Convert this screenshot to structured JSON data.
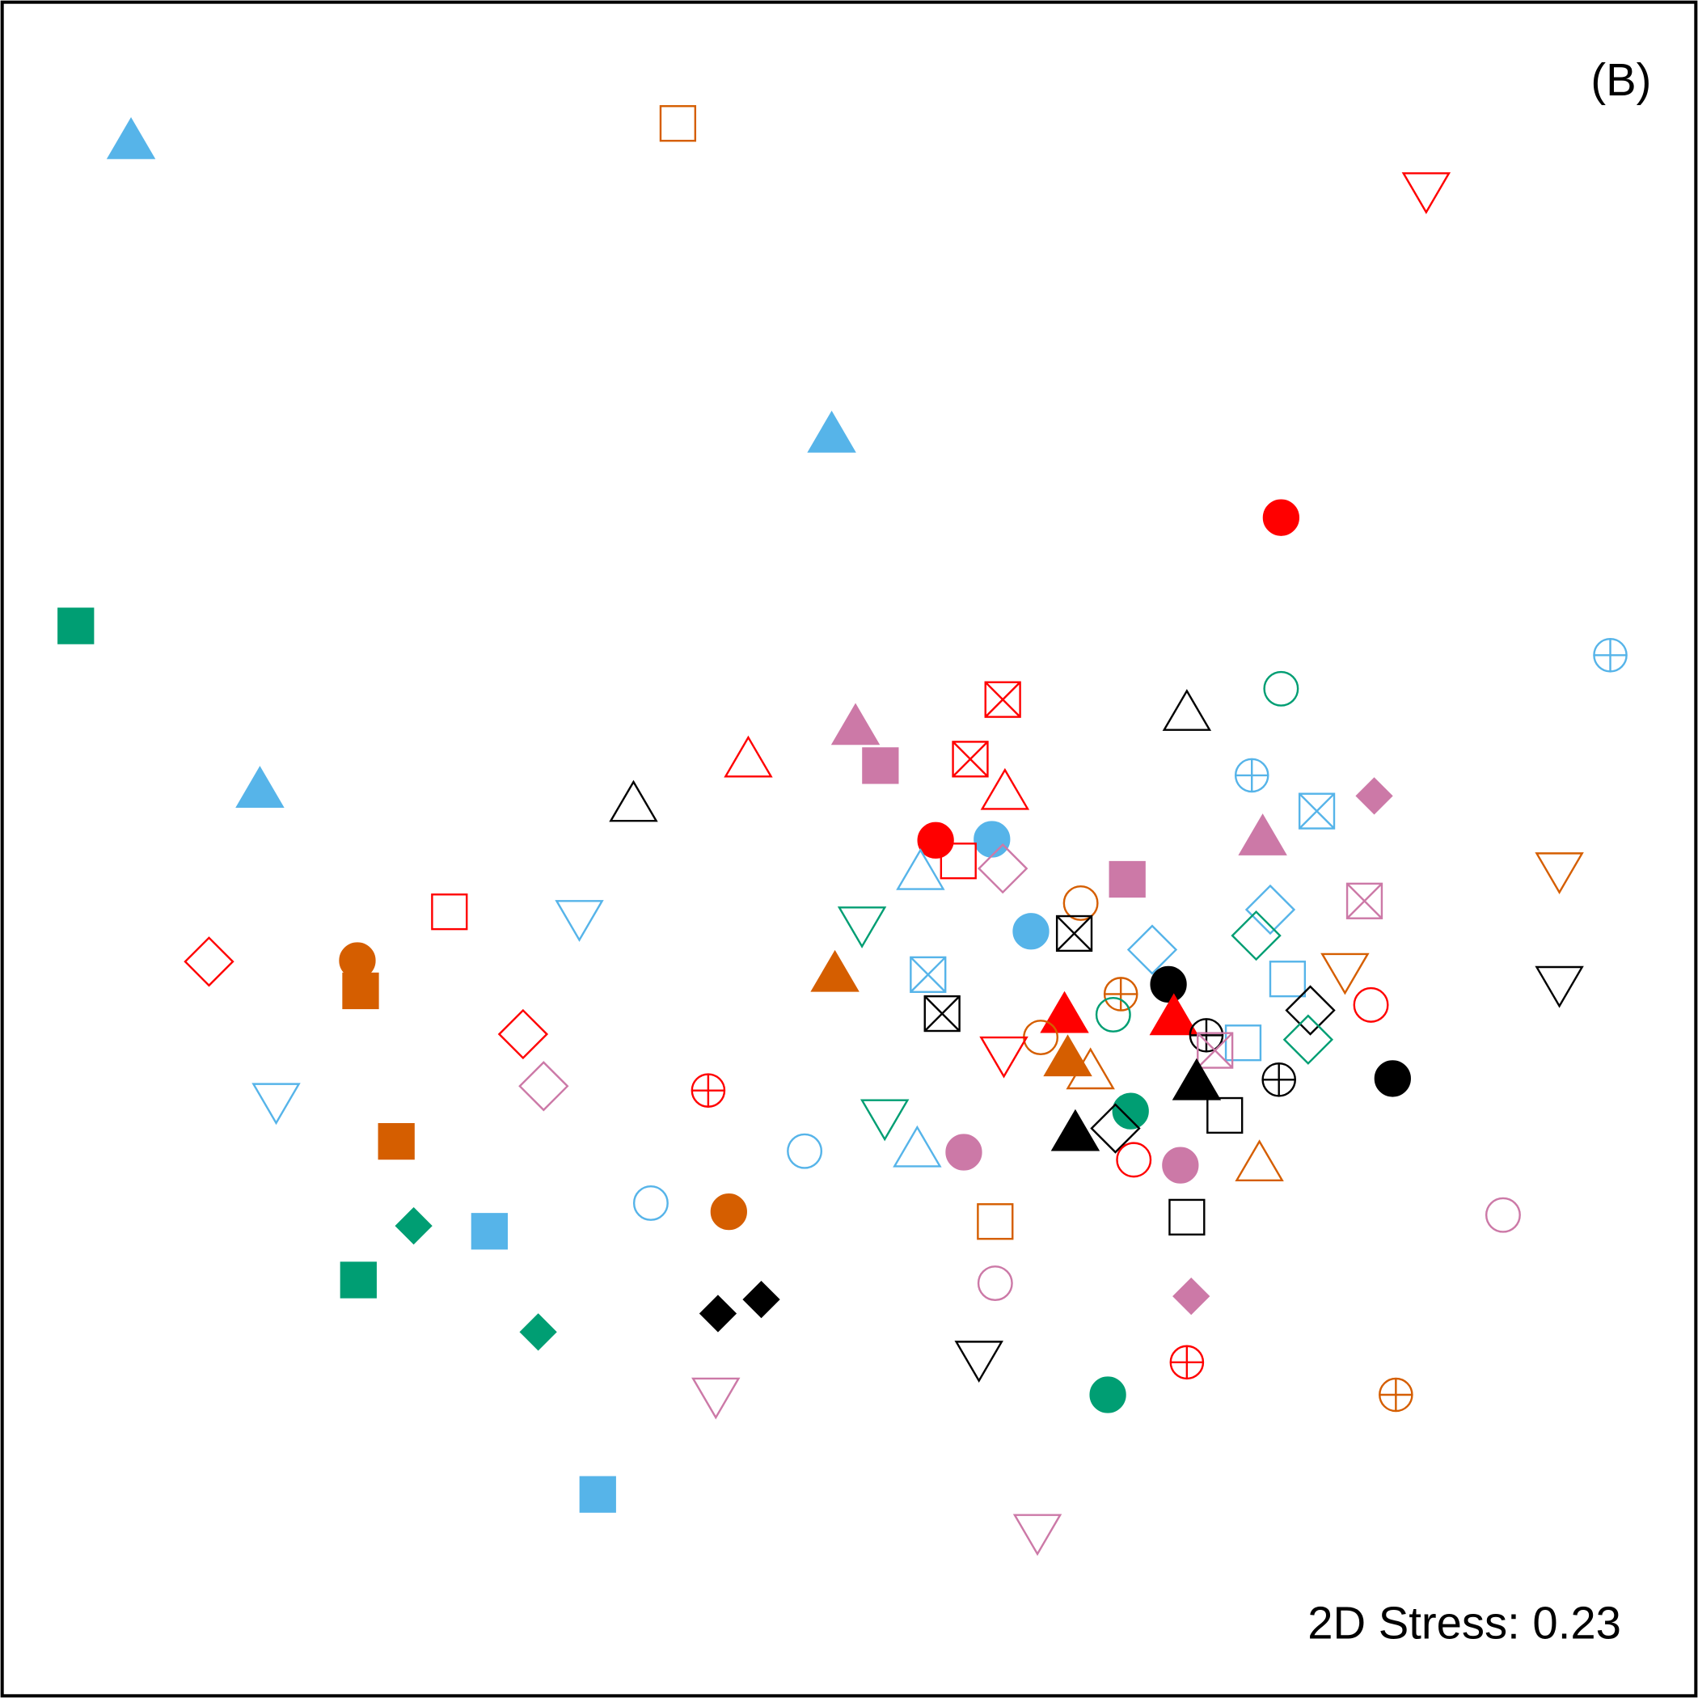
{
  "chart_data": {
    "type": "scatter",
    "panel_label": "(B)",
    "stress_label": "2D Stress: 0.23",
    "xlim": [
      0,
      1568
    ],
    "ylim": [
      0,
      1568
    ],
    "y_inverted": true,
    "axes_visible": false,
    "grid": false,
    "colors": {
      "blue": "#56B4E9",
      "red": "#FF0000",
      "orange": "#D55E00",
      "green": "#009E73",
      "pink": "#CC79A7",
      "black": "#000000"
    },
    "shape_legend": {
      "triangle-up": "triangle pointing up",
      "triangle-down": "triangle pointing down",
      "square": "square",
      "square-x": "square with diagonal cross",
      "circle": "circle",
      "circle-plus": "circle with plus",
      "diamond": "diamond"
    },
    "points": [
      {
        "x": 121,
        "y": 129,
        "shape": "triangle-up",
        "filled": true,
        "color": "blue"
      },
      {
        "x": 626,
        "y": 114,
        "shape": "square",
        "filled": false,
        "color": "orange"
      },
      {
        "x": 1317,
        "y": 177,
        "shape": "triangle-down",
        "filled": false,
        "color": "red"
      },
      {
        "x": 768,
        "y": 400,
        "shape": "triangle-up",
        "filled": true,
        "color": "blue"
      },
      {
        "x": 1183,
        "y": 478,
        "shape": "circle",
        "filled": true,
        "color": "red"
      },
      {
        "x": 70,
        "y": 578,
        "shape": "square",
        "filled": true,
        "color": "green"
      },
      {
        "x": 1487,
        "y": 605,
        "shape": "circle-plus",
        "filled": false,
        "color": "blue"
      },
      {
        "x": 1183,
        "y": 636,
        "shape": "circle",
        "filled": false,
        "color": "green"
      },
      {
        "x": 926,
        "y": 646,
        "shape": "square-x",
        "filled": false,
        "color": "red"
      },
      {
        "x": 1096,
        "y": 657,
        "shape": "triangle-up",
        "filled": false,
        "color": "black"
      },
      {
        "x": 790,
        "y": 670,
        "shape": "triangle-up",
        "filled": true,
        "color": "pink"
      },
      {
        "x": 691,
        "y": 700,
        "shape": "triangle-up",
        "filled": false,
        "color": "red"
      },
      {
        "x": 896,
        "y": 701,
        "shape": "square-x",
        "filled": false,
        "color": "red"
      },
      {
        "x": 813,
        "y": 707,
        "shape": "square",
        "filled": true,
        "color": "pink"
      },
      {
        "x": 1156,
        "y": 716,
        "shape": "circle-plus",
        "filled": false,
        "color": "blue"
      },
      {
        "x": 240,
        "y": 728,
        "shape": "triangle-up",
        "filled": true,
        "color": "blue"
      },
      {
        "x": 928,
        "y": 730,
        "shape": "triangle-up",
        "filled": false,
        "color": "red"
      },
      {
        "x": 1269,
        "y": 735,
        "shape": "diamond",
        "filled": true,
        "color": "pink"
      },
      {
        "x": 585,
        "y": 741,
        "shape": "triangle-up",
        "filled": false,
        "color": "black"
      },
      {
        "x": 1216,
        "y": 749,
        "shape": "square-x",
        "filled": false,
        "color": "blue"
      },
      {
        "x": 1166,
        "y": 772,
        "shape": "triangle-up",
        "filled": true,
        "color": "pink"
      },
      {
        "x": 864,
        "y": 776,
        "shape": "circle",
        "filled": true,
        "color": "red"
      },
      {
        "x": 916,
        "y": 775,
        "shape": "circle",
        "filled": true,
        "color": "blue"
      },
      {
        "x": 885,
        "y": 795,
        "shape": "square",
        "filled": false,
        "color": "red"
      },
      {
        "x": 926,
        "y": 802,
        "shape": "diamond",
        "filled": false,
        "color": "pink"
      },
      {
        "x": 850,
        "y": 804,
        "shape": "triangle-up",
        "filled": false,
        "color": "blue"
      },
      {
        "x": 1440,
        "y": 805,
        "shape": "triangle-down",
        "filled": false,
        "color": "orange"
      },
      {
        "x": 1041,
        "y": 812,
        "shape": "square",
        "filled": true,
        "color": "pink"
      },
      {
        "x": 1260,
        "y": 832,
        "shape": "square-x",
        "filled": false,
        "color": "pink"
      },
      {
        "x": 998,
        "y": 834,
        "shape": "circle",
        "filled": false,
        "color": "orange"
      },
      {
        "x": 415,
        "y": 842,
        "shape": "square",
        "filled": false,
        "color": "red"
      },
      {
        "x": 1173,
        "y": 840,
        "shape": "diamond",
        "filled": false,
        "color": "blue"
      },
      {
        "x": 535,
        "y": 849,
        "shape": "triangle-down",
        "filled": false,
        "color": "blue"
      },
      {
        "x": 796,
        "y": 855,
        "shape": "triangle-down",
        "filled": false,
        "color": "green"
      },
      {
        "x": 952,
        "y": 860,
        "shape": "circle",
        "filled": true,
        "color": "blue"
      },
      {
        "x": 992,
        "y": 862,
        "shape": "square-x",
        "filled": false,
        "color": "black"
      },
      {
        "x": 1160,
        "y": 864,
        "shape": "diamond",
        "filled": false,
        "color": "green"
      },
      {
        "x": 1064,
        "y": 877,
        "shape": "diamond",
        "filled": false,
        "color": "blue"
      },
      {
        "x": 193,
        "y": 888,
        "shape": "diamond",
        "filled": false,
        "color": "red"
      },
      {
        "x": 330,
        "y": 887,
        "shape": "circle",
        "filled": true,
        "color": "orange"
      },
      {
        "x": 771,
        "y": 898,
        "shape": "triangle-up",
        "filled": true,
        "color": "orange"
      },
      {
        "x": 857,
        "y": 900,
        "shape": "square-x",
        "filled": false,
        "color": "blue"
      },
      {
        "x": 1242,
        "y": 898,
        "shape": "triangle-down",
        "filled": false,
        "color": "orange"
      },
      {
        "x": 1189,
        "y": 904,
        "shape": "square",
        "filled": false,
        "color": "blue"
      },
      {
        "x": 1440,
        "y": 910,
        "shape": "triangle-down",
        "filled": false,
        "color": "black"
      },
      {
        "x": 333,
        "y": 915,
        "shape": "square",
        "filled": true,
        "color": "orange"
      },
      {
        "x": 1079,
        "y": 909,
        "shape": "circle",
        "filled": true,
        "color": "black"
      },
      {
        "x": 1035,
        "y": 918,
        "shape": "circle-plus",
        "filled": false,
        "color": "orange"
      },
      {
        "x": 1266,
        "y": 928,
        "shape": "circle",
        "filled": false,
        "color": "red"
      },
      {
        "x": 1210,
        "y": 933,
        "shape": "diamond",
        "filled": false,
        "color": "black"
      },
      {
        "x": 870,
        "y": 936,
        "shape": "square-x",
        "filled": false,
        "color": "black"
      },
      {
        "x": 983,
        "y": 936,
        "shape": "triangle-up",
        "filled": true,
        "color": "red"
      },
      {
        "x": 1028,
        "y": 937,
        "shape": "circle",
        "filled": false,
        "color": "green"
      },
      {
        "x": 1084,
        "y": 938,
        "shape": "triangle-up",
        "filled": true,
        "color": "red"
      },
      {
        "x": 483,
        "y": 955,
        "shape": "diamond",
        "filled": false,
        "color": "red"
      },
      {
        "x": 961,
        "y": 958,
        "shape": "circle",
        "filled": false,
        "color": "orange"
      },
      {
        "x": 1114,
        "y": 956,
        "shape": "circle-plus",
        "filled": false,
        "color": "black"
      },
      {
        "x": 1148,
        "y": 963,
        "shape": "square",
        "filled": false,
        "color": "blue"
      },
      {
        "x": 1208,
        "y": 960,
        "shape": "diamond",
        "filled": false,
        "color": "green"
      },
      {
        "x": 927,
        "y": 975,
        "shape": "triangle-down",
        "filled": false,
        "color": "red"
      },
      {
        "x": 986,
        "y": 976,
        "shape": "triangle-up",
        "filled": true,
        "color": "orange"
      },
      {
        "x": 1122,
        "y": 970,
        "shape": "square-x",
        "filled": false,
        "color": "pink"
      },
      {
        "x": 1007,
        "y": 988,
        "shape": "triangle-up",
        "filled": false,
        "color": "orange"
      },
      {
        "x": 1181,
        "y": 997,
        "shape": "circle-plus",
        "filled": false,
        "color": "black"
      },
      {
        "x": 1286,
        "y": 996,
        "shape": "circle",
        "filled": true,
        "color": "black"
      },
      {
        "x": 1105,
        "y": 998,
        "shape": "triangle-up",
        "filled": true,
        "color": "black"
      },
      {
        "x": 502,
        "y": 1003,
        "shape": "diamond",
        "filled": false,
        "color": "pink"
      },
      {
        "x": 654,
        "y": 1007,
        "shape": "circle-plus",
        "filled": false,
        "color": "red"
      },
      {
        "x": 255,
        "y": 1018,
        "shape": "triangle-down",
        "filled": false,
        "color": "blue"
      },
      {
        "x": 1044,
        "y": 1026,
        "shape": "circle",
        "filled": true,
        "color": "green"
      },
      {
        "x": 1131,
        "y": 1030,
        "shape": "square",
        "filled": false,
        "color": "black"
      },
      {
        "x": 817,
        "y": 1033,
        "shape": "triangle-down",
        "filled": false,
        "color": "green"
      },
      {
        "x": 1030,
        "y": 1042,
        "shape": "diamond",
        "filled": false,
        "color": "black"
      },
      {
        "x": 993,
        "y": 1045,
        "shape": "triangle-up",
        "filled": true,
        "color": "black"
      },
      {
        "x": 366,
        "y": 1054,
        "shape": "square",
        "filled": true,
        "color": "orange"
      },
      {
        "x": 847,
        "y": 1060,
        "shape": "triangle-up",
        "filled": false,
        "color": "blue"
      },
      {
        "x": 743,
        "y": 1063,
        "shape": "circle",
        "filled": false,
        "color": "blue"
      },
      {
        "x": 890,
        "y": 1064,
        "shape": "circle",
        "filled": true,
        "color": "pink"
      },
      {
        "x": 1047,
        "y": 1071,
        "shape": "circle",
        "filled": false,
        "color": "red"
      },
      {
        "x": 1163,
        "y": 1073,
        "shape": "triangle-up",
        "filled": false,
        "color": "orange"
      },
      {
        "x": 1090,
        "y": 1076,
        "shape": "circle",
        "filled": true,
        "color": "pink"
      },
      {
        "x": 601,
        "y": 1111,
        "shape": "circle",
        "filled": false,
        "color": "blue"
      },
      {
        "x": 673,
        "y": 1119,
        "shape": "circle",
        "filled": true,
        "color": "orange"
      },
      {
        "x": 1388,
        "y": 1122,
        "shape": "circle",
        "filled": false,
        "color": "pink"
      },
      {
        "x": 1096,
        "y": 1124,
        "shape": "square",
        "filled": false,
        "color": "black"
      },
      {
        "x": 919,
        "y": 1128,
        "shape": "square",
        "filled": false,
        "color": "orange"
      },
      {
        "x": 382,
        "y": 1132,
        "shape": "diamond",
        "filled": true,
        "color": "green"
      },
      {
        "x": 452,
        "y": 1137,
        "shape": "square",
        "filled": true,
        "color": "blue"
      },
      {
        "x": 331,
        "y": 1182,
        "shape": "square",
        "filled": true,
        "color": "green"
      },
      {
        "x": 919,
        "y": 1185,
        "shape": "circle",
        "filled": false,
        "color": "pink"
      },
      {
        "x": 1100,
        "y": 1197,
        "shape": "diamond",
        "filled": true,
        "color": "pink"
      },
      {
        "x": 703,
        "y": 1200,
        "shape": "diamond",
        "filled": true,
        "color": "black"
      },
      {
        "x": 663,
        "y": 1213,
        "shape": "diamond",
        "filled": true,
        "color": "black"
      },
      {
        "x": 497,
        "y": 1230,
        "shape": "diamond",
        "filled": true,
        "color": "green"
      },
      {
        "x": 904,
        "y": 1256,
        "shape": "triangle-down",
        "filled": false,
        "color": "black"
      },
      {
        "x": 1096,
        "y": 1258,
        "shape": "circle-plus",
        "filled": false,
        "color": "red"
      },
      {
        "x": 1023,
        "y": 1288,
        "shape": "circle",
        "filled": true,
        "color": "green"
      },
      {
        "x": 1289,
        "y": 1288,
        "shape": "circle-plus",
        "filled": false,
        "color": "orange"
      },
      {
        "x": 661,
        "y": 1290,
        "shape": "triangle-down",
        "filled": false,
        "color": "pink"
      },
      {
        "x": 552,
        "y": 1380,
        "shape": "square",
        "filled": true,
        "color": "blue"
      },
      {
        "x": 958,
        "y": 1416,
        "shape": "triangle-down",
        "filled": false,
        "color": "pink"
      }
    ]
  }
}
